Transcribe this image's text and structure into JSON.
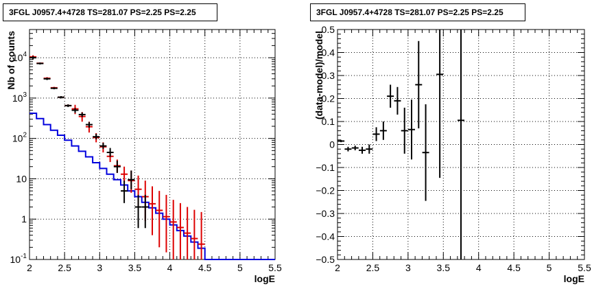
{
  "chart_data": [
    {
      "type": "histogram",
      "title": "3FGL J0957.4+4728 TS=281.07 PS=2.25 PS=2.25",
      "xlabel": "logE",
      "ylabel": "Nb of counts",
      "xlim": [
        2,
        5.5
      ],
      "ylim": [
        0.1,
        50000
      ],
      "yscale": "log",
      "grid": true,
      "x_ticks": [
        "2",
        "2.5",
        "3",
        "3.5",
        "4",
        "4.5",
        "5",
        "5.5"
      ],
      "y_ticks": [
        "10^-1",
        "1",
        "10",
        "10^2",
        "10^3",
        "10^4"
      ],
      "colors": {
        "data": "#000000",
        "model_counts": "#dd0000",
        "model_step": "#0000dd"
      },
      "series": [
        {
          "role": "model-step",
          "bins": [
            2.0,
            2.1,
            2.2,
            2.3,
            2.4,
            2.5,
            2.6,
            2.7,
            2.8,
            2.9,
            3.0,
            3.1,
            3.2,
            3.3,
            3.4,
            3.5,
            3.6,
            3.7,
            3.8,
            3.9,
            4.0,
            4.1,
            4.2,
            4.3,
            4.4,
            4.5,
            5.5
          ],
          "values": [
            420,
            310,
            220,
            160,
            120,
            90,
            65,
            48,
            35,
            25,
            18,
            13,
            9.5,
            7,
            5,
            3.6,
            2.6,
            1.9,
            1.4,
            1.0,
            0.72,
            0.52,
            0.38,
            0.27,
            0.19,
            0.1
          ]
        },
        {
          "role": "model-counts",
          "x": [
            2.05,
            2.15,
            2.25,
            2.35,
            2.45,
            2.55,
            2.65,
            2.75,
            2.85,
            2.95,
            3.05,
            3.15,
            3.25,
            3.35,
            3.45,
            3.55,
            3.65,
            3.75,
            3.85,
            3.95,
            4.05,
            4.15,
            4.25,
            4.35,
            4.45
          ],
          "y": [
            10500,
            7300,
            3100,
            1800,
            1050,
            650,
            540,
            350,
            195,
            105,
            62,
            36,
            21,
            13,
            9,
            5.5,
            3.6,
            2.4,
            1.65,
            1.15,
            0.85,
            0.62,
            0.45,
            0.33,
            0.24
          ],
          "ylo": [
            9500,
            7000,
            2900,
            1700,
            1000,
            620,
            400,
            260,
            140,
            80,
            45,
            26,
            14,
            8,
            4.5,
            2,
            0.9,
            0.4,
            0.2,
            0.15,
            0.1,
            0.1,
            0.1,
            0.1,
            0.1
          ],
          "yhi": [
            11500,
            7600,
            3300,
            1900,
            1100,
            700,
            680,
            450,
            260,
            135,
            80,
            48,
            30,
            20,
            16,
            12,
            9,
            6.5,
            5,
            4,
            3,
            2.5,
            2,
            1.7,
            1.5
          ]
        },
        {
          "role": "data",
          "x": [
            2.05,
            2.15,
            2.25,
            2.35,
            2.45,
            2.55,
            2.65,
            2.75,
            2.85,
            2.95,
            3.05,
            3.15,
            3.25,
            3.35,
            3.45,
            3.55,
            3.65
          ],
          "y": [
            10000,
            7200,
            3000,
            1750,
            1050,
            650,
            500,
            390,
            220,
            110,
            65,
            45,
            20,
            5,
            9.5,
            2,
            2
          ],
          "ylo": [
            9000,
            6800,
            2800,
            1650,
            980,
            600,
            430,
            340,
            185,
            95,
            55,
            35,
            14,
            2.5,
            5.5,
            0.6,
            0.6
          ],
          "yhi": [
            11000,
            7600,
            3200,
            1850,
            1120,
            700,
            570,
            440,
            255,
            130,
            78,
            58,
            28,
            9,
            16,
            4,
            4
          ]
        }
      ]
    },
    {
      "type": "scatter",
      "title": "3FGL J0957.4+4728 TS=281.07 PS=2.25 PS=2.25",
      "xlabel": "logE",
      "ylabel": "(data-model)/model",
      "xlim": [
        2,
        5.5
      ],
      "ylim": [
        -0.5,
        0.5
      ],
      "grid": true,
      "x_ticks": [
        "2",
        "2.5",
        "3",
        "3.5",
        "4",
        "4.5",
        "5",
        "5.5"
      ],
      "y_ticks": [
        "−0.5",
        "−0.4",
        "−0.3",
        "−0.2",
        "−0.1",
        "0",
        "0.1",
        "0.2",
        "0.3",
        "0.4",
        "0.5"
      ],
      "series": [
        {
          "role": "residuals",
          "x": [
            2.05,
            2.15,
            2.25,
            2.35,
            2.45,
            2.55,
            2.65,
            2.75,
            2.85,
            2.95,
            3.05,
            3.15,
            3.25,
            3.45,
            3.75
          ],
          "y": [
            0.015,
            -0.02,
            -0.015,
            -0.025,
            -0.02,
            0.045,
            0.06,
            0.21,
            0.19,
            0.06,
            0.065,
            0.26,
            -0.035,
            0.305,
            0.105
          ],
          "err": [
            0.005,
            0.01,
            0.01,
            0.015,
            0.02,
            0.03,
            0.04,
            0.05,
            0.06,
            0.1,
            0.13,
            0.19,
            0.21,
            0.45,
            0.8
          ]
        }
      ]
    }
  ]
}
